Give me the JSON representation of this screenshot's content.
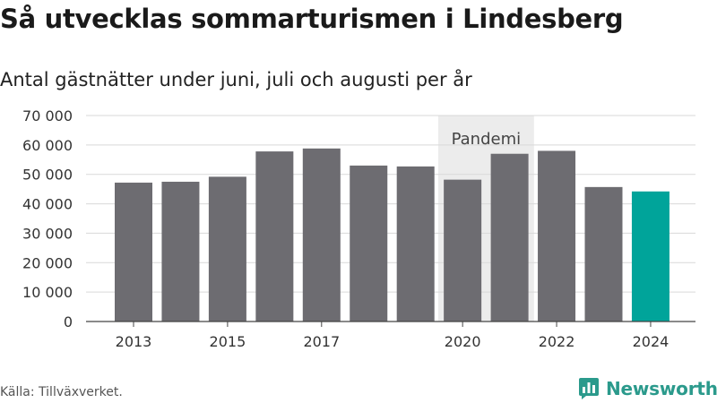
{
  "header": {
    "title": "Så utvecklas sommarturismen i Lindesberg",
    "subtitle": "Antal gästnätter under juni, juli och augusti per år"
  },
  "footer": {
    "source": "Källa: Tillväxverket.",
    "brand": "Newsworthy"
  },
  "icons": {
    "brand_logo": "newsworthy-logo-icon"
  },
  "colors": {
    "bar": "#6d6c71",
    "highlight": "#00a49a",
    "pandemic_band": "#ececec",
    "grid": "#d9d9d9",
    "brand": "#2b9a8c"
  },
  "chart_data": {
    "type": "bar",
    "categories": [
      "2013",
      "2014",
      "2015",
      "2016",
      "2017",
      "2018",
      "2019",
      "2020",
      "2021",
      "2022",
      "2023",
      "2024"
    ],
    "values": [
      47200,
      47500,
      49200,
      57800,
      58800,
      53000,
      52700,
      48200,
      57000,
      58000,
      45700,
      44200
    ],
    "highlight_category": "2024",
    "ylim": [
      0,
      70000
    ],
    "yticks": [
      0,
      10000,
      20000,
      30000,
      40000,
      50000,
      60000,
      70000
    ],
    "ytick_labels": [
      "0",
      "10 000",
      "20 000",
      "30 000",
      "40 000",
      "50 000",
      "60 000",
      "70 000"
    ],
    "xtick_labels": [
      "2013",
      "2015",
      "2017",
      "2020",
      "2022",
      "2024"
    ],
    "annotation": {
      "label": "Pandemi",
      "from": "2020",
      "to": "2021"
    },
    "grid": true,
    "xlabel": "",
    "ylabel": ""
  }
}
